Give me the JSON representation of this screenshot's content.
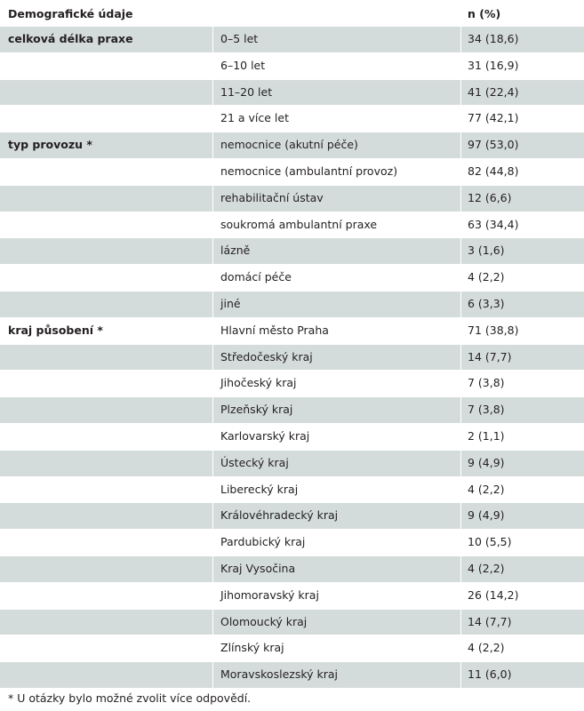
{
  "header": {
    "col1": "Demografické údaje",
    "col3": "n (%)"
  },
  "colors": {
    "shade": "#d4dcdb"
  },
  "rows": [
    {
      "group": "celková délka praxe",
      "label": "0–5 let",
      "value": "34 (18,6)",
      "s1": true,
      "s2": true,
      "s3": true
    },
    {
      "group": "",
      "label": "6–10 let",
      "value": "31 (16,9)",
      "s1": false,
      "s2": false,
      "s3": false
    },
    {
      "group": "",
      "label": "11–20 let",
      "value": "41 (22,4)",
      "s1": true,
      "s2": true,
      "s3": true
    },
    {
      "group": "",
      "label": "21 a více let",
      "value": "77 (42,1)",
      "s1": false,
      "s2": false,
      "s3": false
    },
    {
      "group": "typ provozu *",
      "label": "nemocnice (akutní péče)",
      "value": "97 (53,0)",
      "s1": true,
      "s2": true,
      "s3": true
    },
    {
      "group": "",
      "label": "nemocnice (ambulantní provoz)",
      "value": "82 (44,8)",
      "s1": false,
      "s2": false,
      "s3": false
    },
    {
      "group": "",
      "label": "rehabilitační ústav",
      "value": "12 (6,6)",
      "s1": true,
      "s2": true,
      "s3": true
    },
    {
      "group": "",
      "label": "soukromá ambulantní praxe",
      "value": "63 (34,4)",
      "s1": false,
      "s2": false,
      "s3": false
    },
    {
      "group": "",
      "label": "lázně",
      "value": "3 (1,6)",
      "s1": true,
      "s2": true,
      "s3": true
    },
    {
      "group": "",
      "label": "domácí péče",
      "value": "4 (2,2)",
      "s1": false,
      "s2": false,
      "s3": false
    },
    {
      "group": "",
      "label": "jiné",
      "value": "6 (3,3)",
      "s1": true,
      "s2": true,
      "s3": true
    },
    {
      "group": "kraj působení *",
      "label": "Hlavní město Praha",
      "value": "71 (38,8)",
      "s1": false,
      "s2": false,
      "s3": false
    },
    {
      "group": "",
      "label": "Středočeský kraj",
      "value": "14 (7,7)",
      "s1": true,
      "s2": true,
      "s3": true
    },
    {
      "group": "",
      "label": "Jihočeský kraj",
      "value": "7 (3,8)",
      "s1": false,
      "s2": false,
      "s3": false
    },
    {
      "group": "",
      "label": "Plzeňský kraj",
      "value": "7 (3,8)",
      "s1": true,
      "s2": true,
      "s3": true
    },
    {
      "group": "",
      "label": "Karlovarský kraj",
      "value": "2 (1,1)",
      "s1": false,
      "s2": false,
      "s3": false
    },
    {
      "group": "",
      "label": "Ústecký kraj",
      "value": "9 (4,9)",
      "s1": true,
      "s2": true,
      "s3": true
    },
    {
      "group": "",
      "label": "Liberecký kraj",
      "value": "4 (2,2)",
      "s1": false,
      "s2": false,
      "s3": false
    },
    {
      "group": "",
      "label": "Královéhradecký kraj",
      "value": "9 (4,9)",
      "s1": true,
      "s2": true,
      "s3": true
    },
    {
      "group": "",
      "label": "Pardubický kraj",
      "value": "10 (5,5)",
      "s1": false,
      "s2": false,
      "s3": false
    },
    {
      "group": "",
      "label": "Kraj Vysočina",
      "value": "4 (2,2)",
      "s1": true,
      "s2": true,
      "s3": true
    },
    {
      "group": "",
      "label": "Jihomoravský kraj",
      "value": "26 (14,2)",
      "s1": false,
      "s2": false,
      "s3": false
    },
    {
      "group": "",
      "label": "Olomoucký kraj",
      "value": "14 (7,7)",
      "s1": true,
      "s2": true,
      "s3": true
    },
    {
      "group": "",
      "label": "Zlínský kraj",
      "value": "4 (2,2)",
      "s1": false,
      "s2": false,
      "s3": false
    },
    {
      "group": "",
      "label": "Moravskoslezský kraj",
      "value": "11 (6,0)",
      "s1": true,
      "s2": true,
      "s3": true
    }
  ],
  "footnote": "* U otázky bylo možné zvolit více odpovědí."
}
